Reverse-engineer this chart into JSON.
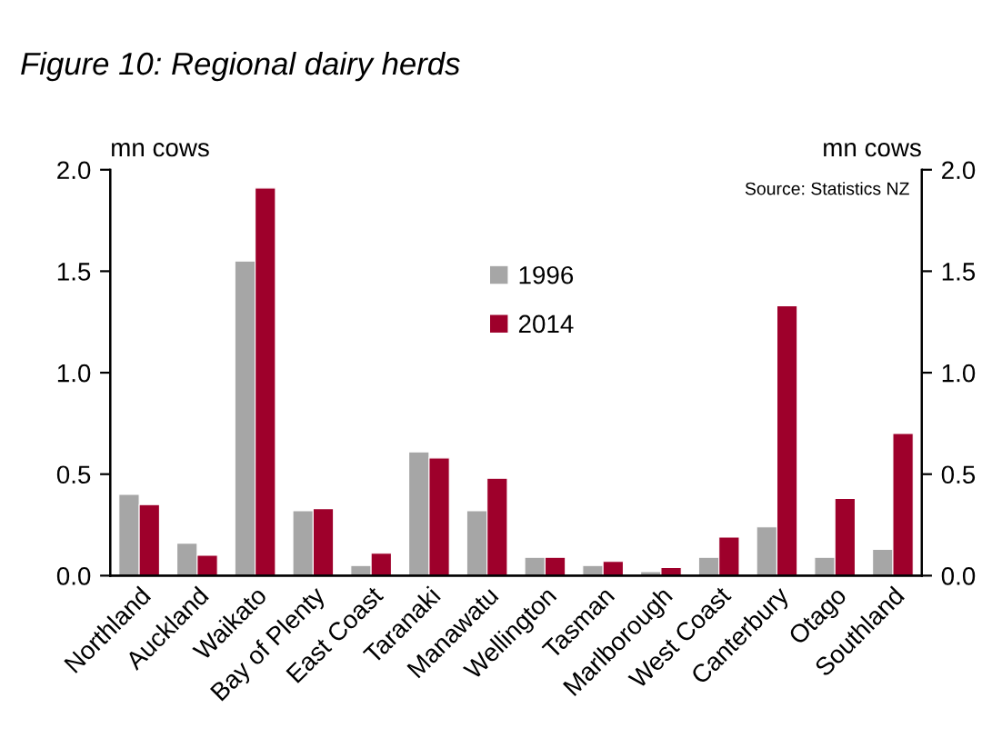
{
  "chart_data": {
    "type": "bar",
    "title": "Figure 10: Regional dairy herds",
    "categories": [
      "Northland",
      "Auckland",
      "Waikato",
      "Bay of Plenty",
      "East Coast",
      "Taranaki",
      "Manawatu",
      "Wellington",
      "Tasman",
      "Marlborough",
      "West Coast",
      "Canterbury",
      "Otago",
      "Southland"
    ],
    "series": [
      {
        "name": "1996",
        "color": "#a6a6a6",
        "values": [
          0.4,
          0.16,
          1.55,
          0.32,
          0.05,
          0.61,
          0.32,
          0.09,
          0.05,
          0.02,
          0.09,
          0.24,
          0.09,
          0.13
        ]
      },
      {
        "name": "2014",
        "color": "#9e002b",
        "values": [
          0.35,
          0.1,
          1.91,
          0.33,
          0.11,
          0.58,
          0.48,
          0.09,
          0.07,
          0.04,
          0.19,
          1.33,
          0.38,
          0.7
        ]
      }
    ],
    "ylabel": "mn cows",
    "y2label": "mn cows",
    "ylim": [
      0,
      2.0
    ],
    "yticks": [
      {
        "value": 0,
        "label": "0.0"
      },
      {
        "value": 0.5,
        "label": "0.5"
      },
      {
        "value": 1.0,
        "label": "1.0"
      },
      {
        "value": 1.5,
        "label": "1.5"
      },
      {
        "value": 2.0,
        "label": "2.0"
      }
    ],
    "y2lim": [
      0,
      2.0
    ],
    "y2ticks": [
      {
        "value": 0,
        "label": "0.0"
      },
      {
        "value": 0.5,
        "label": "0.5"
      },
      {
        "value": 1.0,
        "label": "1.0"
      },
      {
        "value": 1.5,
        "label": "1.5"
      },
      {
        "value": 2.0,
        "label": "2.0"
      }
    ],
    "annotations": [
      "Source: Statistics NZ"
    ],
    "legend": "top",
    "grid": false
  }
}
